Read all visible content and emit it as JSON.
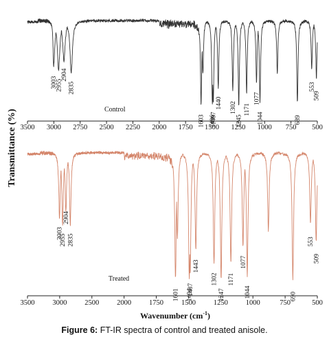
{
  "chart_data": [
    {
      "type": "line",
      "panel": "Control",
      "label": "Control",
      "color": "#333333",
      "xlim": [
        3500,
        500
      ],
      "x_reversed": true,
      "x_ticks": [
        3500,
        3000,
        2750,
        2500,
        2250,
        2000,
        1750,
        1500,
        1250,
        1000,
        750,
        500
      ],
      "x_tick_labels": [
        "3500",
        "3000",
        "2750",
        "2500",
        "2250",
        "2000",
        "1750",
        "1500",
        "1250",
        "1000",
        "750",
        "500"
      ],
      "peaks": [
        "3003",
        "2955",
        "2835",
        "2904",
        "1603",
        "1496",
        "1487",
        "1440",
        "1302",
        "1245",
        "1171",
        "1077",
        "1044",
        "689",
        "553",
        "509"
      ],
      "bands": [
        {
          "x": 3003,
          "depth": 0.52
        },
        {
          "x": 2955,
          "depth": 0.55
        },
        {
          "x": 2904,
          "depth": 0.45
        },
        {
          "x": 2835,
          "depth": 0.58
        },
        {
          "x": 1603,
          "depth": 0.95
        },
        {
          "x": 1586,
          "depth": 0.6
        },
        {
          "x": 1496,
          "depth": 0.95
        },
        {
          "x": 1487,
          "depth": 0.92
        },
        {
          "x": 1440,
          "depth": 0.75
        },
        {
          "x": 1302,
          "depth": 0.8
        },
        {
          "x": 1245,
          "depth": 0.95
        },
        {
          "x": 1171,
          "depth": 0.82
        },
        {
          "x": 1077,
          "depth": 0.7
        },
        {
          "x": 1044,
          "depth": 0.92
        },
        {
          "x": 880,
          "depth": 0.6
        },
        {
          "x": 689,
          "depth": 0.92
        },
        {
          "x": 553,
          "depth": 0.55
        },
        {
          "x": 509,
          "depth": 0.65
        }
      ]
    },
    {
      "type": "line",
      "panel": "Treated",
      "label": "Treated",
      "color": "#d4856a",
      "xlim": [
        3500,
        500
      ],
      "x_reversed": true,
      "x_ticks": [
        3500,
        3000,
        2500,
        2000,
        1750,
        1500,
        1250,
        1000,
        750,
        500
      ],
      "x_tick_labels": [
        "3500",
        "3000",
        "2500",
        "2000",
        "1750",
        "1500",
        "1250",
        "1000",
        "750",
        "500"
      ],
      "xlabel": "Wavenumber (cm",
      "xlabel_sup": "-1",
      "xlabel_close": ")",
      "peaks": [
        "3003",
        "2955",
        "2835",
        "2904",
        "1601",
        "1494",
        "1487",
        "1443",
        "1302",
        "1247",
        "1171",
        "1077",
        "1044",
        "690",
        "553",
        "509"
      ],
      "bands": [
        {
          "x": 3003,
          "depth": 0.5
        },
        {
          "x": 2955,
          "depth": 0.55
        },
        {
          "x": 2904,
          "depth": 0.45
        },
        {
          "x": 2835,
          "depth": 0.55
        },
        {
          "x": 1601,
          "depth": 0.97
        },
        {
          "x": 1586,
          "depth": 0.65
        },
        {
          "x": 1494,
          "depth": 0.97
        },
        {
          "x": 1487,
          "depth": 0.93
        },
        {
          "x": 1443,
          "depth": 0.75
        },
        {
          "x": 1302,
          "depth": 0.85
        },
        {
          "x": 1247,
          "depth": 0.97
        },
        {
          "x": 1171,
          "depth": 0.85
        },
        {
          "x": 1077,
          "depth": 0.72
        },
        {
          "x": 1044,
          "depth": 0.95
        },
        {
          "x": 880,
          "depth": 0.6
        },
        {
          "x": 690,
          "depth": 0.97
        },
        {
          "x": 553,
          "depth": 0.55
        },
        {
          "x": 509,
          "depth": 0.68
        }
      ]
    }
  ],
  "ylabel": "Transmittance (%)",
  "caption": {
    "label": "Figure 6:",
    "text": " FT-IR spectra of control and treated anisole."
  }
}
